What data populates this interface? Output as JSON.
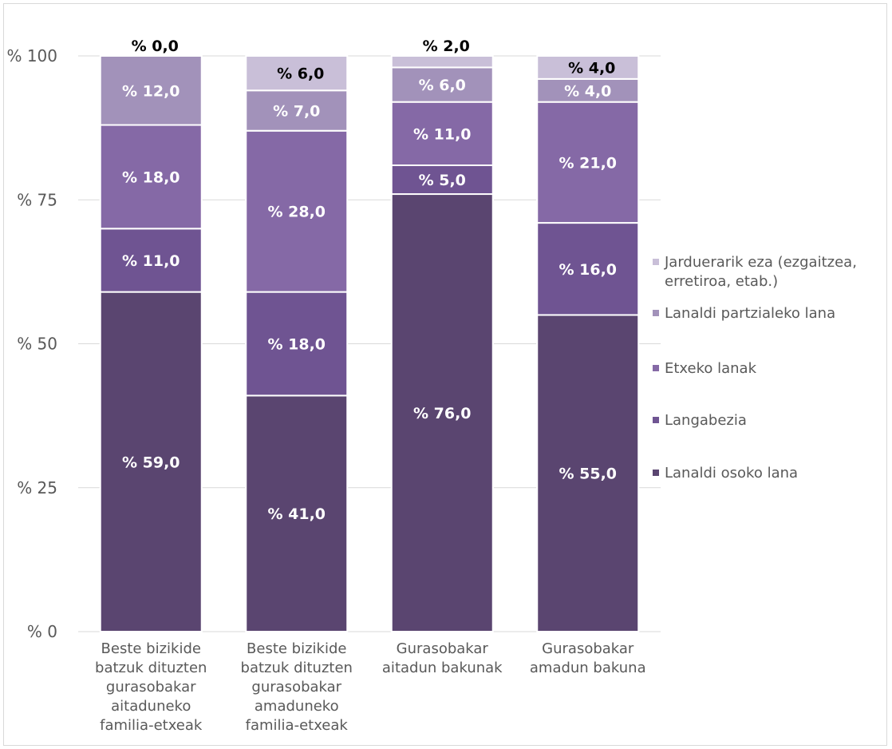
{
  "chart_data": {
    "type": "bar",
    "stacked": true,
    "categories": [
      [
        "Beste bizikide",
        "batzuk dituzten",
        "gurasobakar",
        "aitaduneko",
        "familia-etxeak"
      ],
      [
        "Beste bizikide",
        "batzuk dituzten",
        "gurasobakar",
        "amaduneko",
        "familia-etxeak"
      ],
      [
        "Gurasobakar",
        "aitadun bakunak"
      ],
      [
        "Gurasobakar",
        "amadun bakuna"
      ]
    ],
    "series": [
      {
        "name": "Lanaldi osoko lana",
        "values": [
          59.0,
          41.0,
          76.0,
          55.0
        ],
        "labels": [
          "% 59,0",
          "% 41,0",
          "% 76,0",
          "% 55,0"
        ],
        "color": "#5a4570"
      },
      {
        "name": "Langabezia",
        "values": [
          11.0,
          18.0,
          5.0,
          16.0
        ],
        "labels": [
          "% 11,0",
          "% 18,0",
          "% 5,0",
          "% 16,0"
        ],
        "color": "#6f5492"
      },
      {
        "name": "Etxeko lanak",
        "values": [
          18.0,
          28.0,
          11.0,
          21.0
        ],
        "labels": [
          "% 18,0",
          "% 28,0",
          "% 11,0",
          "% 21,0"
        ],
        "color": "#8569a6"
      },
      {
        "name": "Lanaldi partzialeko lana",
        "values": [
          12.0,
          7.0,
          6.0,
          4.0
        ],
        "labels": [
          "% 12,0",
          "% 7,0",
          "% 6,0",
          "% 4,0"
        ],
        "color": "#a292ba"
      },
      {
        "name": "Jarduerarik eza (ezgaitzea, erretiroa, etab.)",
        "legend_lines": [
          "Jarduerarik eza (ezgaitzea,",
          "erretiroa, etab.)"
        ],
        "values": [
          0.0,
          6.0,
          2.0,
          4.0
        ],
        "labels": [
          "% 0,0",
          "% 6,0",
          "% 2,0",
          "% 4,0"
        ],
        "color": "#c9bfd8"
      }
    ],
    "yticks": [
      {
        "value": 0,
        "label": "% 0"
      },
      {
        "value": 25,
        "label": "% 25"
      },
      {
        "value": 50,
        "label": "% 50"
      },
      {
        "value": 75,
        "label": "% 75"
      },
      {
        "value": 100,
        "label": "% 100"
      }
    ],
    "ylim": [
      0,
      100
    ],
    "grid": true,
    "legend_position": "right",
    "title": "",
    "xlabel": "",
    "ylabel": ""
  }
}
